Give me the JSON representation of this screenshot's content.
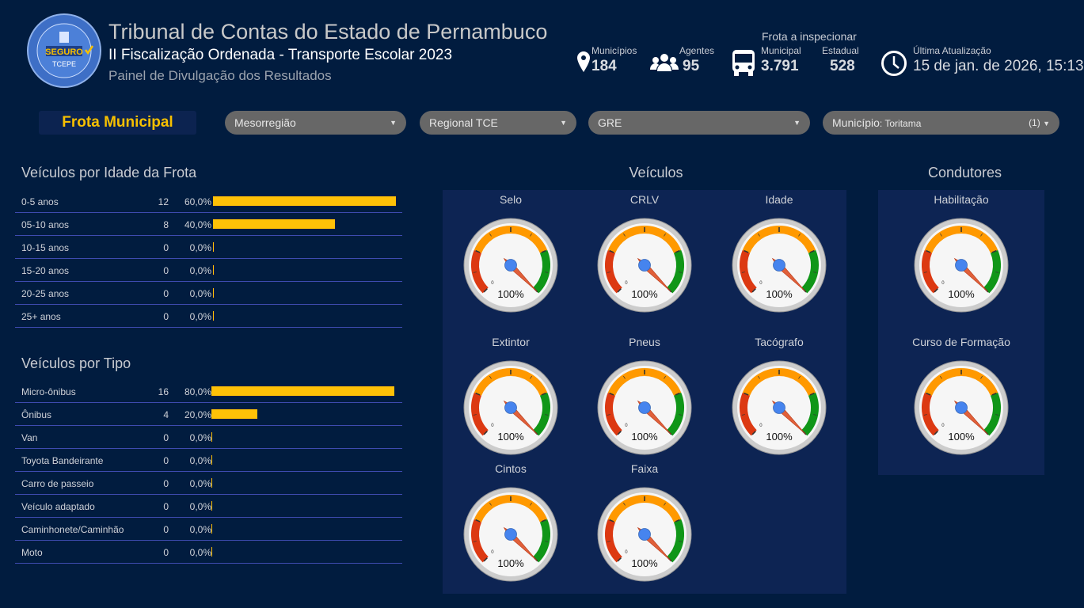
{
  "logo": {
    "ring_text": "TRANSPORTE ESCOLAR",
    "main": "SEGURO",
    "sub": "TCEPE"
  },
  "header": {
    "title": "Tribunal de Contas do Estado de Pernambuco",
    "subtitle": "II Fiscalização Ordenada - Transporte Escolar 2023",
    "tagline": "Painel de Divulgação dos Resultados"
  },
  "stats": {
    "municipios": {
      "label": "Municípios",
      "value": "184",
      "icon": "map-pin-icon"
    },
    "agentes": {
      "label": "Agentes",
      "value": "95",
      "icon": "people-icon"
    },
    "frota": {
      "label": "Frota a inspecionar",
      "icon": "bus-icon",
      "municipal_label": "Municipal",
      "municipal_value": "3.791",
      "estadual_label": "Estadual",
      "estadual_value": "528"
    },
    "atualizacao": {
      "label": "Última Atualização",
      "value": "15 de jan. de 2026, 15:13",
      "icon": "clock-icon"
    }
  },
  "filters": {
    "badge": "Frota Municipal",
    "mesorregiao": "Mesorregião",
    "regional": "Regional TCE",
    "gre": "GRE",
    "municipio_label": "Município",
    "municipio_value": ": Toritama",
    "municipio_count": "(1)"
  },
  "idade": {
    "title": "Veículos por Idade da Frota",
    "rows": [
      {
        "label": "0-5 anos",
        "count": "12",
        "pct": "60,0%",
        "value": 60
      },
      {
        "label": "05-10 anos",
        "count": "8",
        "pct": "40,0%",
        "value": 40
      },
      {
        "label": "10-15 anos",
        "count": "0",
        "pct": "0,0%",
        "value": 0
      },
      {
        "label": "15-20 anos",
        "count": "0",
        "pct": "0,0%",
        "value": 0
      },
      {
        "label": "20-25 anos",
        "count": "0",
        "pct": "0,0%",
        "value": 0
      },
      {
        "label": "25+ anos",
        "count": "0",
        "pct": "0,0%",
        "value": 0
      }
    ]
  },
  "tipo": {
    "title": "Veículos por Tipo",
    "rows": [
      {
        "label": "Micro-ônibus",
        "count": "16",
        "pct": "80,0%",
        "value": 80
      },
      {
        "label": "Ônibus",
        "count": "4",
        "pct": "20,0%",
        "value": 20
      },
      {
        "label": "Van",
        "count": "0",
        "pct": "0,0%",
        "value": 0
      },
      {
        "label": "Toyota Bandeirante",
        "count": "0",
        "pct": "0,0%",
        "value": 0
      },
      {
        "label": "Carro de passeio",
        "count": "0",
        "pct": "0,0%",
        "value": 0
      },
      {
        "label": "Veículo adaptado",
        "count": "0",
        "pct": "0,0%",
        "value": 0
      },
      {
        "label": "Caminhonete/Caminhão",
        "count": "0",
        "pct": "0,0%",
        "value": 0
      },
      {
        "label": "Moto",
        "count": "0",
        "pct": "0,0%",
        "value": 0
      }
    ]
  },
  "veiculos": {
    "title": "Veículos",
    "gauges": [
      {
        "label": "Selo",
        "value": 100,
        "text": "100%",
        "min_label": "0"
      },
      {
        "label": "CRLV",
        "value": 100,
        "text": "100%",
        "min_label": "0"
      },
      {
        "label": "Idade",
        "value": 100,
        "text": "100%",
        "min_label": "0"
      },
      {
        "label": "Extintor",
        "value": 100,
        "text": "100%",
        "min_label": "0"
      },
      {
        "label": "Pneus",
        "value": 100,
        "text": "100%",
        "min_label": "0"
      },
      {
        "label": "Tacógrafo",
        "value": 100,
        "text": "100%",
        "min_label": "0"
      },
      {
        "label": "Cintos",
        "value": 100,
        "text": "100%",
        "min_label": "0"
      },
      {
        "label": "Faixa",
        "value": 100,
        "text": "100%",
        "min_label": "0"
      }
    ]
  },
  "condutores": {
    "title": "Condutores",
    "gauges": [
      {
        "label": "Habilitação",
        "value": 100,
        "text": "100%",
        "min_label": "0"
      },
      {
        "label": "Curso de Formação",
        "value": 100,
        "text": "100%",
        "min_label": "0"
      }
    ]
  },
  "colors": {
    "bar": "#ffc107",
    "red": "#dc3912",
    "orange": "#ff9900",
    "green": "#109618",
    "needle_hub": "#4684ee"
  }
}
